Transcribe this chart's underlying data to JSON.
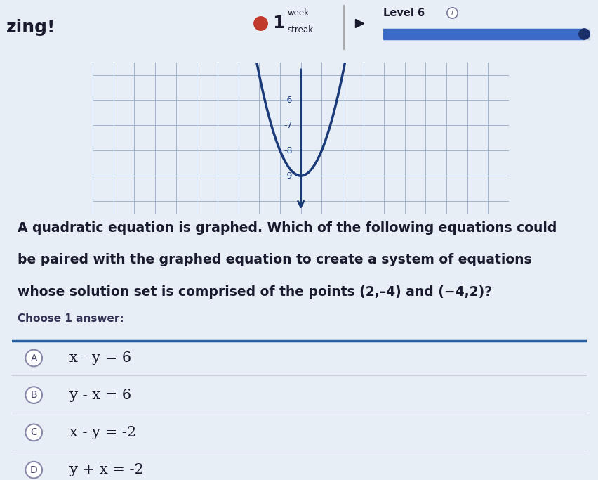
{
  "page_bg": "#e8eef5",
  "header_text_left": "zing!",
  "header_streak_num": "1",
  "header_streak_label_top": "week",
  "header_streak_label_bottom": "streak",
  "header_level": "Level 6",
  "header_progress_color": "#3a6bc9",
  "header_dot_color": "#c0392b",
  "graph_bg": "#d0dcea",
  "graph_grid_color": "#a0b4cc",
  "graph_axis_color": "#1a3a7a",
  "graph_curve_color": "#1a3a7a",
  "graph_yticks": [
    "-6",
    "-7",
    "-8",
    "-9"
  ],
  "graph_ytick_vals": [
    -6,
    -7,
    -8,
    -9
  ],
  "question_text_line1": "A quadratic equation is graphed. Which of the following equations could",
  "question_text_line2": "be paired with the graphed equation to create a system of equations",
  "question_text_line3": "whose solution set is comprised of the points (2,–4) and (−4,2)?",
  "choose_label": "Choose 1 answer:",
  "answer_separator_color": "#2c5f9e",
  "answers": [
    {
      "label": "A",
      "text": "x - y = 6"
    },
    {
      "label": "B",
      "text": "y - x = 6"
    },
    {
      "label": "C",
      "text": "x - y = -2"
    },
    {
      "label": "D",
      "text": "y + x = -2"
    }
  ],
  "answer_text_color": "#1a1a2e",
  "text_color": "#1a1a2e",
  "font_size_question": 13.5,
  "font_size_answer": 15,
  "font_size_choose": 11
}
